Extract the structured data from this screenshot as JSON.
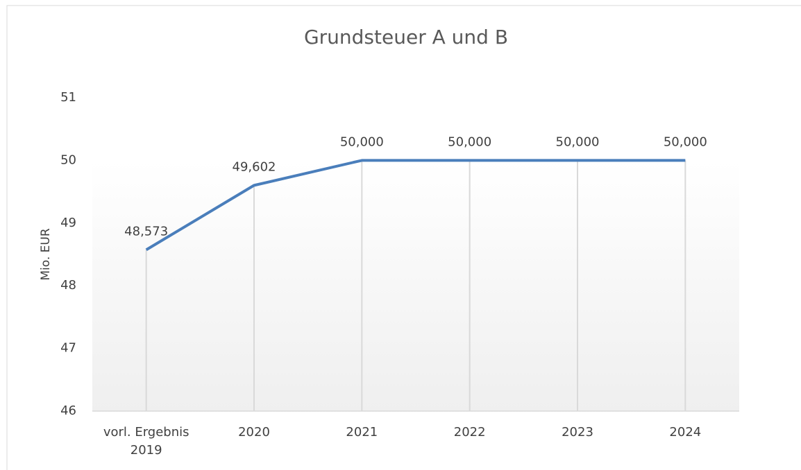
{
  "chart_data": {
    "type": "line",
    "title": "Grundsteuer A und B",
    "y_label": "Mio. EUR",
    "categories": [
      "vorl. Ergebnis 2019",
      "2020",
      "2021",
      "2022",
      "2023",
      "2024"
    ],
    "series": [
      {
        "name": "Grundsteuer A und B",
        "color": "#4a7ebb",
        "values": [
          48.573,
          49.602,
          50,
          50,
          50,
          50
        ],
        "value_labels": [
          "48,573",
          "49,602",
          "50,000",
          "50,000",
          "50,000",
          "50,000"
        ]
      }
    ],
    "ylim": [
      46,
      51
    ],
    "yticks": [
      46,
      47,
      48,
      49,
      50,
      51
    ],
    "grid": false,
    "drop_lines": true
  }
}
